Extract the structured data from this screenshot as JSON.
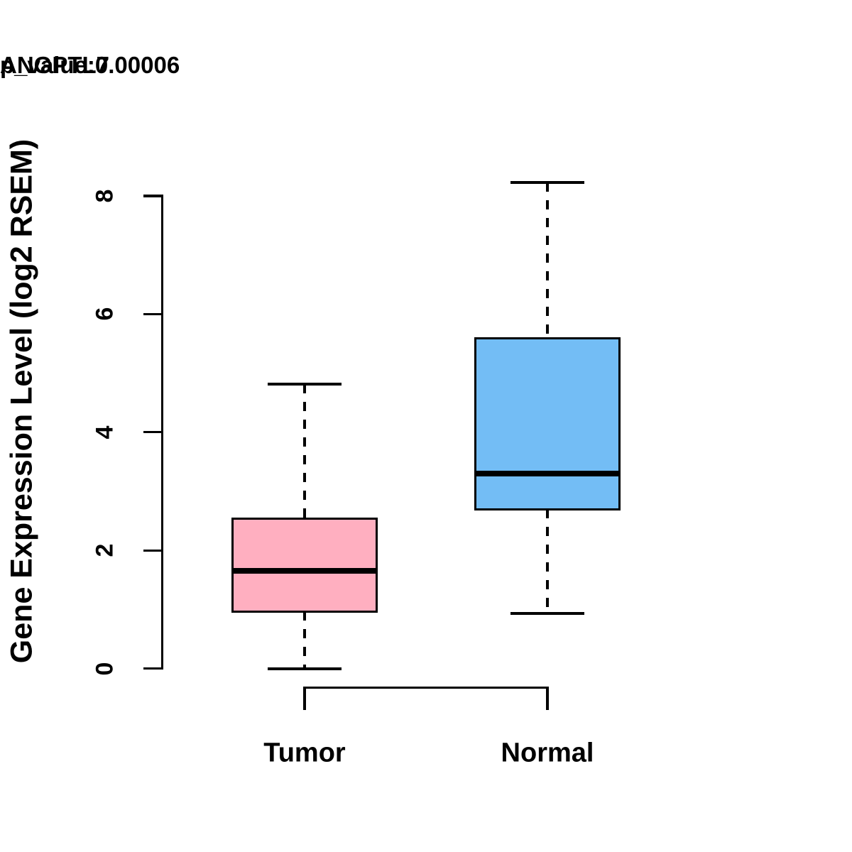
{
  "title": "ANGPTL7",
  "subtitle": "p_value:0.00006",
  "y_axis": {
    "label": "Gene Expression Level (log2 RSEM)",
    "tick_labels": [
      "0",
      "2",
      "4",
      "6",
      "8"
    ]
  },
  "x_axis": {
    "categories": [
      "Tumor",
      "Normal"
    ]
  },
  "colors": {
    "tumor_fill": "#FFAFC0",
    "normal_fill": "#73BDF5",
    "stroke": "#000000",
    "background": "#FFFFFF"
  },
  "chart_data": {
    "type": "boxplot",
    "title": "ANGPTL7",
    "subtitle": "p_value:0.00006",
    "ylabel": "Gene Expression Level (log2 RSEM)",
    "xlabel": "",
    "ylim": [
      0,
      8.4
    ],
    "yticks": [
      0,
      2,
      4,
      6,
      8
    ],
    "grid": false,
    "legend": "none",
    "whisker_line_style": "dashed",
    "categories": [
      "Tumor",
      "Normal"
    ],
    "series": [
      {
        "name": "Tumor",
        "fill": "#FFAFC0",
        "whisker_low": 0.0,
        "q1": 0.97,
        "median": 1.66,
        "q3": 2.54,
        "whisker_high": 4.81
      },
      {
        "name": "Normal",
        "fill": "#73BDF5",
        "whisker_low": 0.93,
        "q1": 2.7,
        "median": 3.3,
        "q3": 5.59,
        "whisker_high": 8.23
      }
    ]
  }
}
